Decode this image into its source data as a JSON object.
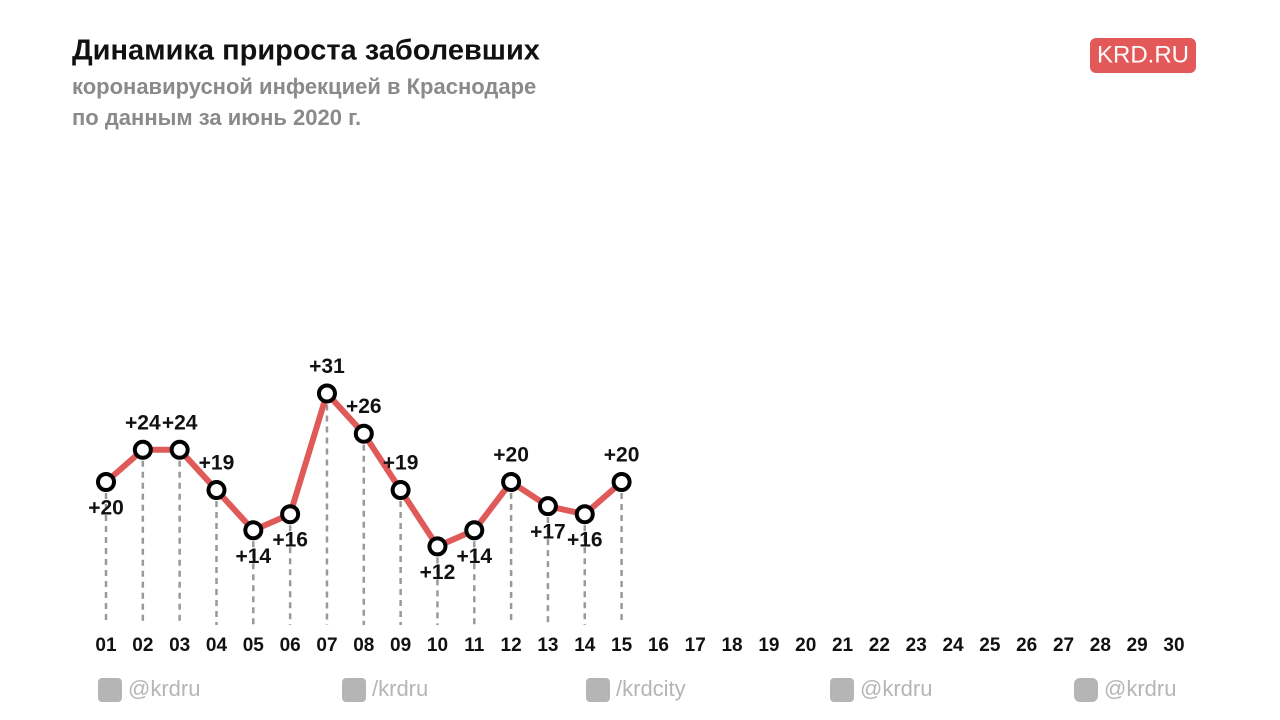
{
  "logo": "KRD.RU",
  "footer": [
    "@krdru",
    "/krdru",
    "/krdcity",
    "@krdru",
    "@krdru"
  ],
  "chart_data": {
    "type": "line",
    "title": "Динамика прироста заболевших",
    "subtitle": [
      "коронавирусной инфекцией в Краснодаре",
      "по данным за июнь 2020 г."
    ],
    "categories": [
      "01",
      "02",
      "03",
      "04",
      "05",
      "06",
      "07",
      "08",
      "09",
      "10",
      "11",
      "12",
      "13",
      "14",
      "15",
      "16",
      "17",
      "18",
      "19",
      "20",
      "21",
      "22",
      "23",
      "24",
      "25",
      "26",
      "27",
      "28",
      "29",
      "30"
    ],
    "values": [
      20,
      24,
      24,
      19,
      14,
      16,
      31,
      26,
      19,
      12,
      14,
      20,
      17,
      16,
      20,
      null,
      null,
      null,
      null,
      null,
      null,
      null,
      null,
      null,
      null,
      null,
      null,
      null,
      null,
      null
    ],
    "value_labels": [
      "+20",
      "+24",
      "+24",
      "+19",
      "+14",
      "+16",
      "+31",
      "+26",
      "+19",
      "+12",
      "+14",
      "+20",
      "+17",
      "+16",
      "+20",
      null,
      null,
      null,
      null,
      null,
      null,
      null,
      null,
      null,
      null,
      null,
      null,
      null,
      null,
      null
    ],
    "color": "#e05a5a",
    "ylim": [
      0,
      40
    ]
  }
}
